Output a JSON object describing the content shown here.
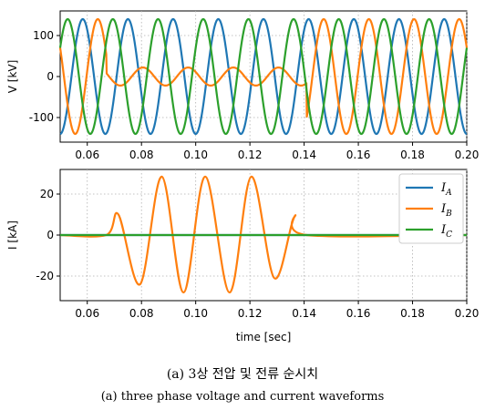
{
  "chart_data": [
    {
      "type": "line",
      "ylabel": "V [kV]",
      "xlabel": "",
      "xlim": [
        0.05,
        0.2
      ],
      "ylim": [
        -160,
        160
      ],
      "xticks": [
        "0.06",
        "0.08",
        "0.10",
        "0.12",
        "0.14",
        "0.16",
        "0.18",
        "0.20"
      ],
      "yticks": [
        "100",
        "0",
        "-100"
      ],
      "grid": true,
      "series": [
        {
          "key": "A",
          "color": "#1f77b4",
          "amplitude": 140,
          "frequency_hz": 60,
          "phase_deg": -90
        },
        {
          "key": "B",
          "color": "#ff7f0e",
          "amplitude": 140,
          "frequency_hz": 60,
          "phase_deg": 150,
          "fault_interval": [
            0.067,
            0.141
          ],
          "fault_amplitude": 22
        },
        {
          "key": "C",
          "color": "#2ca02c",
          "amplitude": 140,
          "frequency_hz": 60,
          "phase_deg": 30
        }
      ]
    },
    {
      "type": "line",
      "ylabel": "I [kA]",
      "xlabel": "time [sec]",
      "xlim": [
        0.05,
        0.2
      ],
      "ylim": [
        -32,
        32
      ],
      "xticks": [
        "0.06",
        "0.08",
        "0.10",
        "0.12",
        "0.14",
        "0.16",
        "0.18",
        "0.20"
      ],
      "yticks": [
        "20",
        "0",
        "-20"
      ],
      "grid": true,
      "legend_position": "top-right",
      "series": [
        {
          "name": "IA",
          "label_main": "I",
          "label_sub": "A",
          "color": "#1f77b4",
          "points": [
            [
              0.05,
              0
            ],
            [
              0.2,
              0
            ]
          ]
        },
        {
          "name": "IB",
          "label_main": "I",
          "label_sub": "B",
          "color": "#ff7f0e",
          "points": [
            [
              0.05,
              0
            ],
            [
              0.067,
              0
            ],
            [
              0.0715,
              10
            ],
            [
              0.0795,
              -24
            ],
            [
              0.0875,
              28.5
            ],
            [
              0.0955,
              -28
            ],
            [
              0.1035,
              28.5
            ],
            [
              0.1125,
              -28
            ],
            [
              0.1205,
              28.5
            ],
            [
              0.129,
              -21
            ],
            [
              0.1365,
              9
            ],
            [
              0.141,
              0
            ],
            [
              0.2,
              0
            ]
          ]
        },
        {
          "name": "IC",
          "label_main": "I",
          "label_sub": "C",
          "color": "#2ca02c",
          "points": [
            [
              0.05,
              0
            ],
            [
              0.2,
              0
            ]
          ]
        }
      ]
    }
  ],
  "captions": {
    "korean": "(a) 3상 전압 및 전류 순시치",
    "english": "(a) three phase voltage and current waveforms"
  }
}
